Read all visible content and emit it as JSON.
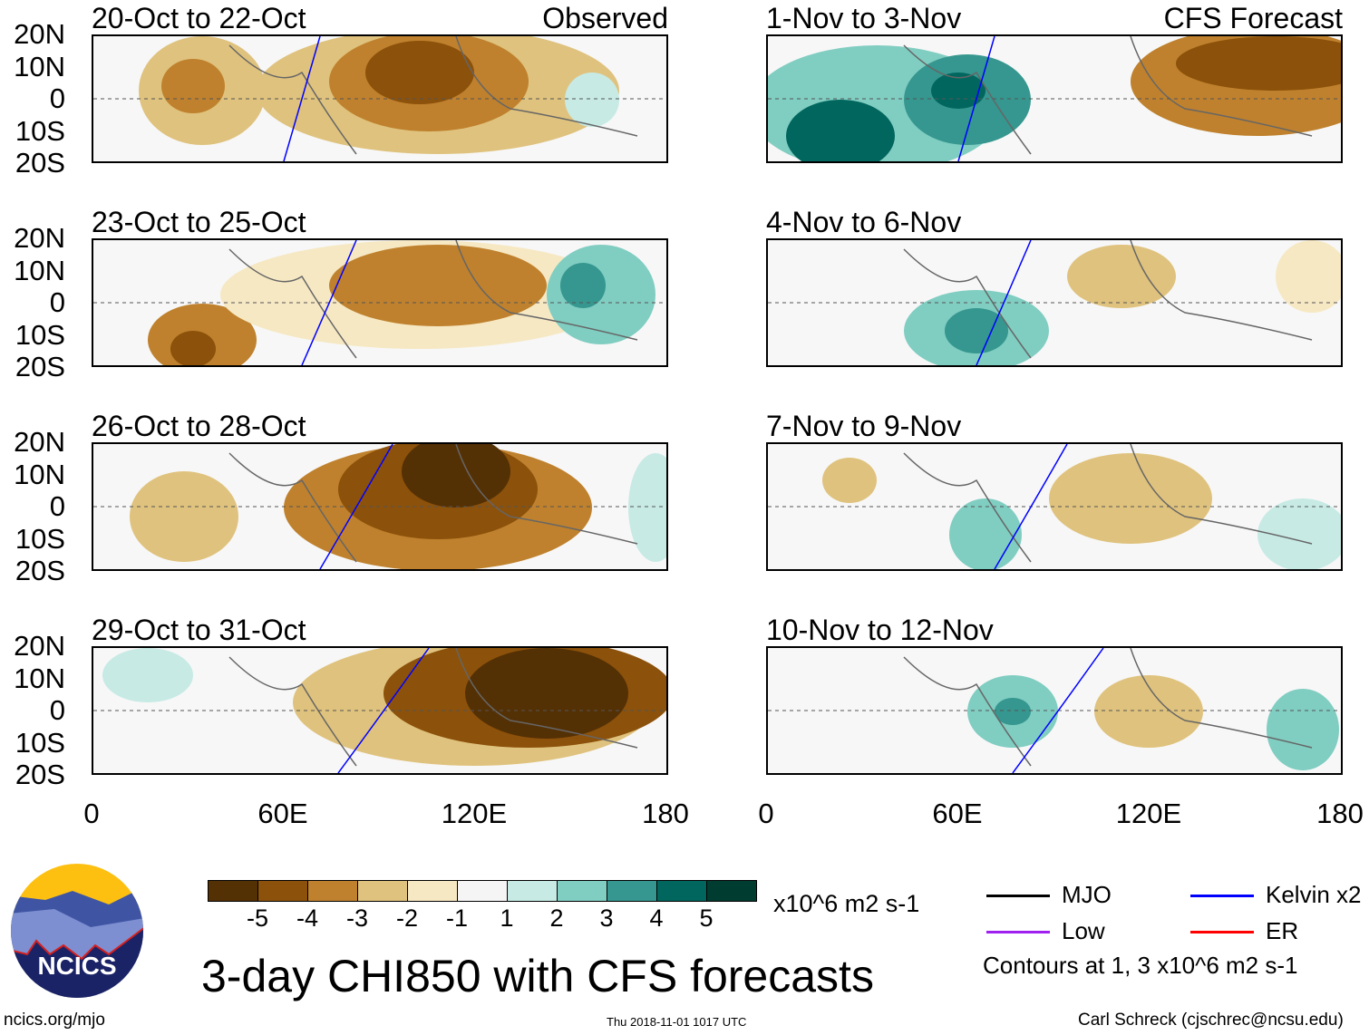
{
  "panels_left": [
    {
      "title": "20-Oct to 22-Oct",
      "label": "Observed"
    },
    {
      "title": "23-Oct to 25-Oct",
      "label": ""
    },
    {
      "title": "26-Oct to 28-Oct",
      "label": ""
    },
    {
      "title": "29-Oct to 31-Oct",
      "label": ""
    }
  ],
  "panels_right": [
    {
      "title": "1-Nov to 3-Nov",
      "label": "CFS Forecast"
    },
    {
      "title": "4-Nov to 6-Nov",
      "label": ""
    },
    {
      "title": "7-Nov to 9-Nov",
      "label": ""
    },
    {
      "title": "10-Nov to 12-Nov",
      "label": ""
    }
  ],
  "lat_labels": [
    "20N",
    "10N",
    "0",
    "10S",
    "20S"
  ],
  "lon_labels": [
    "0",
    "60E",
    "120E",
    "180"
  ],
  "colorbar": {
    "colors": [
      "#543005",
      "#8c510a",
      "#bf812d",
      "#dfc27d",
      "#f6e8c3",
      "#f5f5f5",
      "#c7eae5",
      "#80cdc1",
      "#35978f",
      "#01665e",
      "#003c30"
    ],
    "labels": [
      "-5",
      "-4",
      "-3",
      "-2",
      "-1",
      "1",
      "2",
      "3",
      "4",
      "5"
    ],
    "units": "x10^6 m2 s-1"
  },
  "legend": {
    "items": [
      {
        "name": "MJO",
        "color": "#000000"
      },
      {
        "name": "Kelvin x2",
        "color": "#0000ff"
      },
      {
        "name": "Low",
        "color": "#a020f0"
      },
      {
        "name": "ER",
        "color": "#ff0000"
      }
    ],
    "contours": "Contours at 1, 3 x10^6 m2 s-1"
  },
  "title": "3-day CHI850 with CFS forecasts",
  "logo_text": "NCICS",
  "footer": {
    "url": "ncics.org/mjo",
    "timestamp": "Thu 2018-11-01 1017 UTC",
    "author": "Carl Schreck (cjschrec@ncsu.edu)"
  }
}
